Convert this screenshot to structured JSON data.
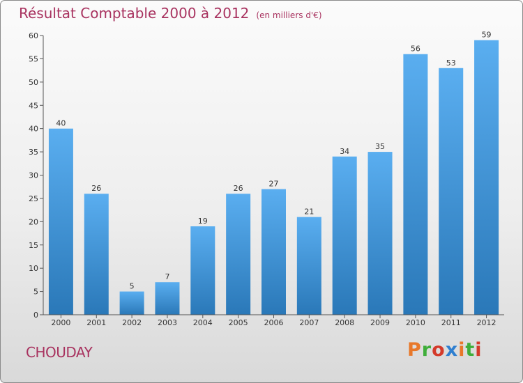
{
  "header": {
    "title": "Résultat Comptable 2000 à 2012",
    "subtitle": "(en milliers d'€)"
  },
  "footer": {
    "commune": "CHOUDAY",
    "brand": "Proxiti",
    "brand_colors": [
      "#e8782a",
      "#3fae3a",
      "#d43a2a",
      "#2f7fd0",
      "#e8782a",
      "#3fae3a",
      "#d43a2a"
    ]
  },
  "chart_data": {
    "type": "bar",
    "title": "Résultat Comptable 2000 à 2012",
    "subtitle": "(en milliers d'€)",
    "xlabel": "",
    "ylabel": "",
    "categories": [
      "2000",
      "2001",
      "2002",
      "2003",
      "2004",
      "2005",
      "2006",
      "2007",
      "2008",
      "2009",
      "2010",
      "2011",
      "2012"
    ],
    "values": [
      40,
      26,
      5,
      7,
      19,
      26,
      27,
      21,
      34,
      35,
      56,
      53,
      59
    ],
    "ylim": [
      0,
      60
    ],
    "yticks": [
      0,
      5,
      10,
      15,
      20,
      25,
      30,
      35,
      40,
      45,
      50,
      55,
      60
    ],
    "grid": false,
    "bar_color_top": "#5aaef0",
    "bar_color_bottom": "#2a78b8",
    "axis_color": "#555555",
    "label_color": "#333333"
  }
}
